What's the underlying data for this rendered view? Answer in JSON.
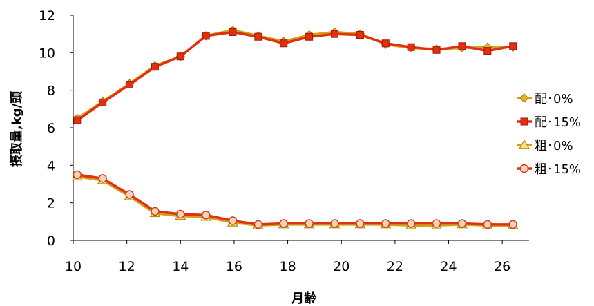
{
  "chart_data": {
    "type": "line",
    "xlabel": "月齢",
    "ylabel": "摂取量,kg/頭",
    "xlim": [
      10,
      27
    ],
    "ylim": [
      0,
      12
    ],
    "xticks": [
      10,
      12,
      14,
      16,
      18,
      20,
      22,
      24,
      26
    ],
    "yticks": [
      0,
      2,
      4,
      6,
      8,
      10,
      12
    ],
    "grid": false,
    "legend_position": "right",
    "x": [
      10.15,
      11.1,
      12.1,
      13.05,
      14.0,
      14.95,
      15.95,
      16.9,
      17.85,
      18.8,
      19.75,
      20.7,
      21.65,
      22.6,
      23.55,
      24.5,
      25.45,
      26.4
    ],
    "series": [
      {
        "name": "配･0%",
        "marker": "diamond",
        "color": "#D4A017",
        "values": [
          6.5,
          7.4,
          8.35,
          9.3,
          9.8,
          10.9,
          11.2,
          10.9,
          10.6,
          10.95,
          11.1,
          11.0,
          10.45,
          10.25,
          10.2,
          10.25,
          10.3,
          10.3
        ]
      },
      {
        "name": "配･15%",
        "marker": "square",
        "color": "#E03010",
        "values": [
          6.4,
          7.35,
          8.3,
          9.25,
          9.8,
          10.9,
          11.1,
          10.85,
          10.5,
          10.85,
          11.0,
          10.95,
          10.5,
          10.3,
          10.15,
          10.35,
          10.1,
          10.35
        ]
      },
      {
        "name": "粗･0%",
        "marker": "triangle",
        "color": "#D4A017",
        "values": [
          3.4,
          3.2,
          2.35,
          1.45,
          1.3,
          1.25,
          0.95,
          0.8,
          0.85,
          0.85,
          0.85,
          0.85,
          0.85,
          0.8,
          0.8,
          0.85,
          0.8,
          0.8
        ]
      },
      {
        "name": "粗･15%",
        "marker": "circle",
        "color": "#E03010",
        "values": [
          3.5,
          3.3,
          2.45,
          1.55,
          1.4,
          1.35,
          1.05,
          0.85,
          0.9,
          0.9,
          0.9,
          0.9,
          0.9,
          0.9,
          0.9,
          0.9,
          0.85,
          0.85
        ]
      }
    ]
  }
}
